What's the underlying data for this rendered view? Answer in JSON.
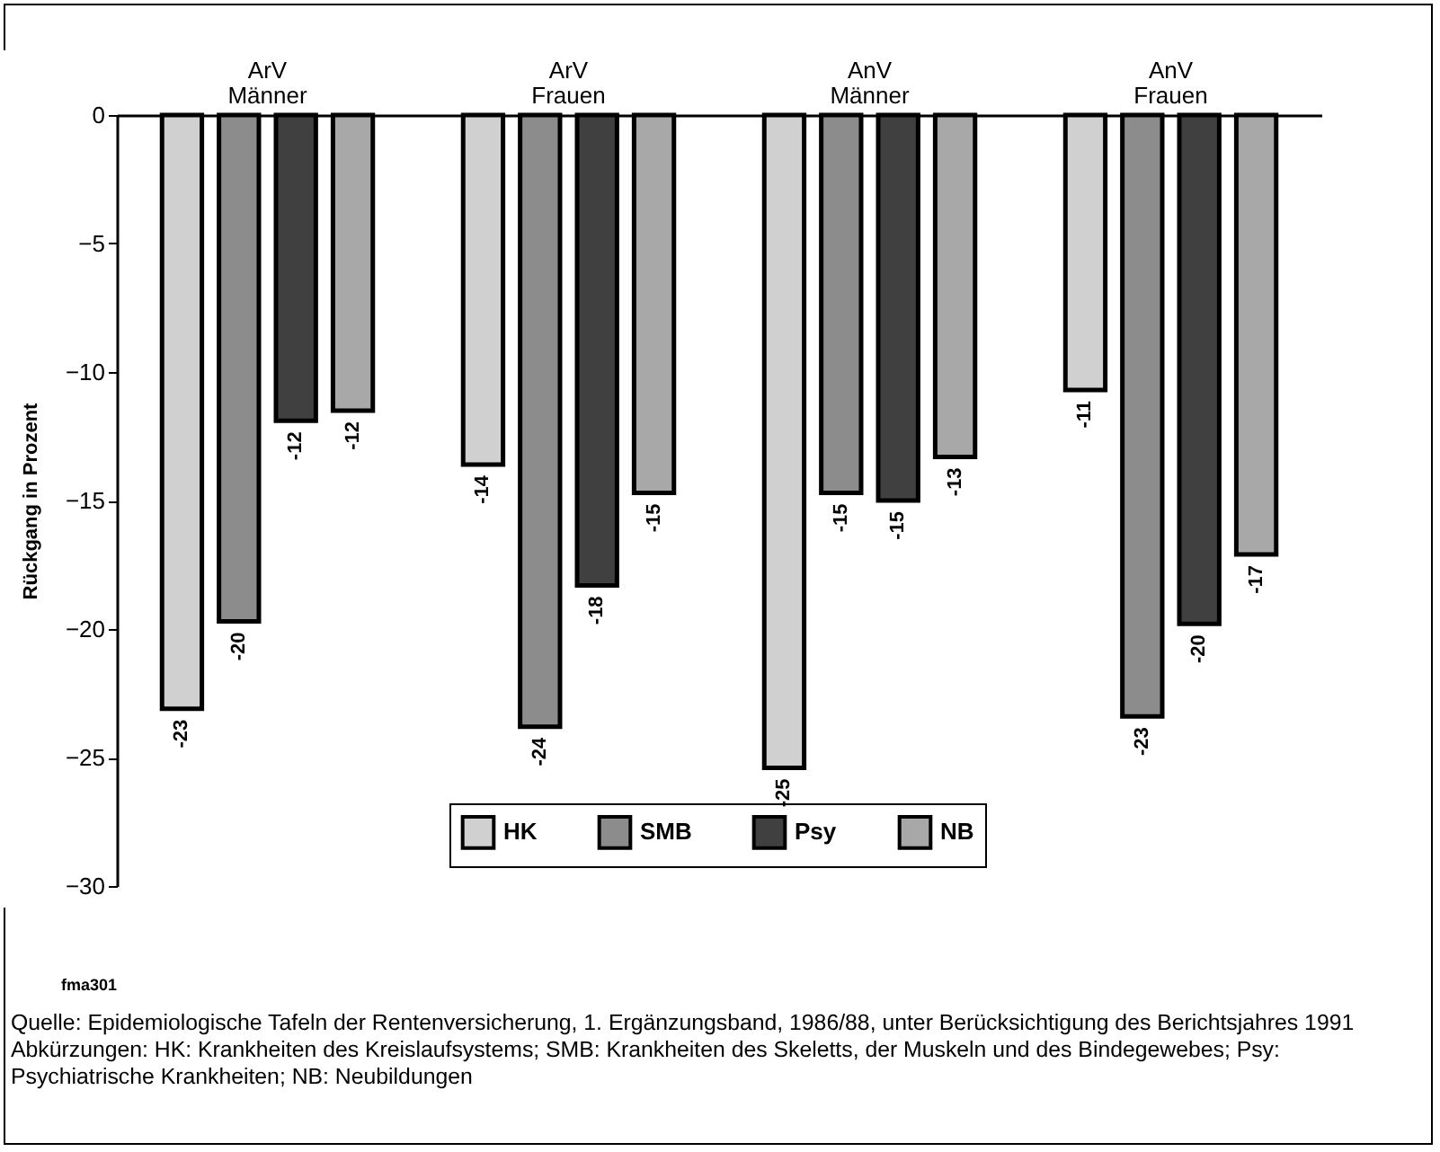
{
  "chart_data": {
    "type": "bar",
    "ylabel": "Rückgang in Prozent",
    "categories": [
      "ArV Männer",
      "ArV Frauen",
      "AnV Männer",
      "AnV Frauen"
    ],
    "series": [
      {
        "name": "HK",
        "color": "#d0d0d0",
        "values": [
          -23.1,
          -13.6,
          -25.4,
          -10.7
        ],
        "value_labels": [
          "-23",
          "-14",
          "-25",
          "-11"
        ]
      },
      {
        "name": "SMB",
        "color": "#8c8c8c",
        "values": [
          -19.7,
          -23.8,
          -14.7,
          -23.4
        ],
        "value_labels": [
          "-20",
          "-24",
          "-15",
          "-23"
        ]
      },
      {
        "name": "Psy",
        "color": "#404040",
        "values": [
          -11.9,
          -18.3,
          -15.0,
          -19.8
        ],
        "value_labels": [
          "-12",
          "-18",
          "-15",
          "-20"
        ]
      },
      {
        "name": "NB",
        "color": "#a8a8a8",
        "values": [
          -11.5,
          -14.7,
          -13.3,
          -17.1
        ],
        "value_labels": [
          "-12",
          "-15",
          "-13",
          "-17"
        ]
      }
    ],
    "ylim": [
      -30,
      0
    ],
    "yticks": [
      0,
      -5,
      -10,
      -15,
      -20,
      -25,
      -30
    ],
    "legend": "bottom",
    "grid": false,
    "annotations": [
      "fma301",
      "Quelle: Epidemiologische Tafeln der Rentenversicherung, 1. Ergänzungsband, 1986/88, unter Berücksichtigung des Berichtsjahres 1991",
      "Abkürzungen: HK: Krankheiten des Kreislaufsystems; SMB: Krankheiten des Skeletts, der Muskeln und des Bindegewebes; Psy: Psychiatrische Krankheiten; NB: Neubildungen"
    ]
  }
}
